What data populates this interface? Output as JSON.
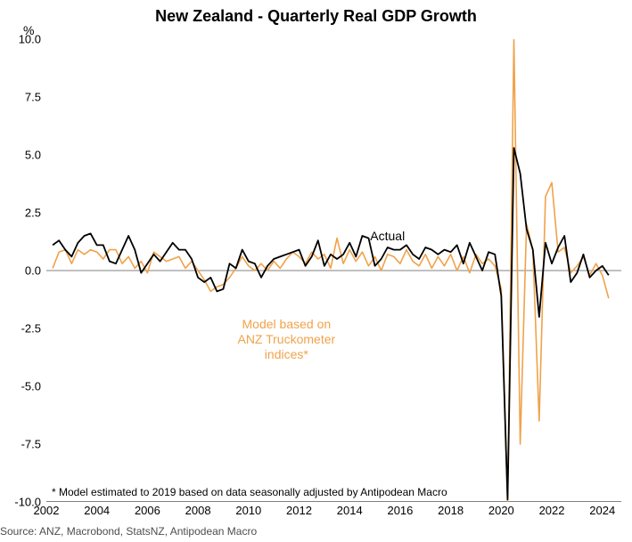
{
  "chart": {
    "type": "line",
    "title": "New Zealand - Quarterly Real GDP Growth",
    "y_unit_label": "%",
    "footnote": "* Model estimated to 2019 based on data seasonally adjusted by Antipodean Macro",
    "source": "Source: ANZ, Macrobond, StatsNZ, Antipodean Macro",
    "background_color": "#ffffff",
    "axis_color": "#000000",
    "zero_line_color": "#808080",
    "title_fontsize": 18,
    "label_fontsize": 13,
    "annotation_fontsize": 14,
    "x": {
      "min": 2002,
      "max": 2024.75,
      "ticks": [
        2002,
        2004,
        2006,
        2008,
        2010,
        2012,
        2014,
        2016,
        2018,
        2020,
        2022,
        2024
      ]
    },
    "y": {
      "min": -10.0,
      "max": 10.0,
      "ticks": [
        -10.0,
        -7.5,
        -5.0,
        -2.5,
        0.0,
        2.5,
        5.0,
        7.5,
        10.0
      ]
    },
    "series": [
      {
        "name": "Model based on ANZ Truckometer indices*",
        "color": "#f0a24a",
        "line_width": 1.6,
        "label_lines": [
          "Model based on",
          "ANZ Truckometer",
          "indices*"
        ],
        "label_pos": {
          "x": 2011.5,
          "y": -2.0
        },
        "data": [
          [
            2002.25,
            0.1
          ],
          [
            2002.5,
            0.8
          ],
          [
            2002.75,
            0.9
          ],
          [
            2003,
            0.3
          ],
          [
            2003.25,
            0.9
          ],
          [
            2003.5,
            0.7
          ],
          [
            2003.75,
            0.9
          ],
          [
            2004,
            0.8
          ],
          [
            2004.25,
            0.5
          ],
          [
            2004.5,
            0.9
          ],
          [
            2004.75,
            0.9
          ],
          [
            2005,
            0.3
          ],
          [
            2005.25,
            0.6
          ],
          [
            2005.5,
            0.1
          ],
          [
            2005.75,
            0.4
          ],
          [
            2006,
            -0.1
          ],
          [
            2006.25,
            0.8
          ],
          [
            2006.5,
            0.6
          ],
          [
            2006.75,
            0.4
          ],
          [
            2007,
            0.5
          ],
          [
            2007.25,
            0.6
          ],
          [
            2007.5,
            0.1
          ],
          [
            2007.75,
            0.4
          ],
          [
            2008,
            0.0
          ],
          [
            2008.25,
            -0.4
          ],
          [
            2008.5,
            -0.9
          ],
          [
            2008.75,
            -0.7
          ],
          [
            2009,
            -0.6
          ],
          [
            2009.25,
            -0.3
          ],
          [
            2009.5,
            0.1
          ],
          [
            2009.75,
            0.6
          ],
          [
            2010,
            0.2
          ],
          [
            2010.25,
            0.0
          ],
          [
            2010.5,
            0.3
          ],
          [
            2010.75,
            0.0
          ],
          [
            2011,
            0.4
          ],
          [
            2011.25,
            0.1
          ],
          [
            2011.5,
            0.5
          ],
          [
            2011.75,
            0.8
          ],
          [
            2012,
            0.6
          ],
          [
            2012.25,
            0.3
          ],
          [
            2012.5,
            0.8
          ],
          [
            2012.75,
            0.5
          ],
          [
            2013,
            0.7
          ],
          [
            2013.25,
            0.1
          ],
          [
            2013.5,
            1.4
          ],
          [
            2013.75,
            0.3
          ],
          [
            2014,
            0.9
          ],
          [
            2014.25,
            0.4
          ],
          [
            2014.5,
            0.8
          ],
          [
            2014.75,
            0.2
          ],
          [
            2015,
            0.6
          ],
          [
            2015.25,
            0.0
          ],
          [
            2015.5,
            0.7
          ],
          [
            2015.75,
            0.6
          ],
          [
            2016,
            0.3
          ],
          [
            2016.25,
            0.9
          ],
          [
            2016.5,
            0.4
          ],
          [
            2016.75,
            0.2
          ],
          [
            2017,
            0.7
          ],
          [
            2017.25,
            0.1
          ],
          [
            2017.5,
            0.6
          ],
          [
            2017.75,
            0.2
          ],
          [
            2018,
            0.7
          ],
          [
            2018.25,
            0.0
          ],
          [
            2018.5,
            0.6
          ],
          [
            2018.75,
            -0.1
          ],
          [
            2019,
            0.7
          ],
          [
            2019.25,
            0.3
          ],
          [
            2019.5,
            0.5
          ],
          [
            2019.75,
            0.2
          ],
          [
            2020,
            -0.8
          ],
          [
            2020.25,
            -10.5
          ],
          [
            2020.5,
            11.0
          ],
          [
            2020.75,
            -7.5
          ],
          [
            2021,
            2.0
          ],
          [
            2021.25,
            0.9
          ],
          [
            2021.5,
            -6.5
          ],
          [
            2021.75,
            3.2
          ],
          [
            2022,
            3.8
          ],
          [
            2022.25,
            0.8
          ],
          [
            2022.5,
            1.0
          ],
          [
            2022.75,
            -0.1
          ],
          [
            2023,
            0.2
          ],
          [
            2023.25,
            0.6
          ],
          [
            2023.5,
            -0.2
          ],
          [
            2023.75,
            0.3
          ],
          [
            2024,
            -0.2
          ],
          [
            2024.25,
            -1.2
          ]
        ]
      },
      {
        "name": "Actual",
        "color": "#000000",
        "line_width": 1.8,
        "label_lines": [
          "Actual"
        ],
        "label_pos": {
          "x": 2015.5,
          "y": 1.8
        },
        "data": [
          [
            2002.25,
            1.1
          ],
          [
            2002.5,
            1.3
          ],
          [
            2002.75,
            0.9
          ],
          [
            2003,
            0.6
          ],
          [
            2003.25,
            1.2
          ],
          [
            2003.5,
            1.5
          ],
          [
            2003.75,
            1.6
          ],
          [
            2004,
            1.1
          ],
          [
            2004.25,
            1.1
          ],
          [
            2004.5,
            0.4
          ],
          [
            2004.75,
            0.3
          ],
          [
            2005,
            0.9
          ],
          [
            2005.25,
            1.5
          ],
          [
            2005.5,
            0.9
          ],
          [
            2005.75,
            -0.1
          ],
          [
            2006,
            0.3
          ],
          [
            2006.25,
            0.7
          ],
          [
            2006.5,
            0.4
          ],
          [
            2006.75,
            0.8
          ],
          [
            2007,
            1.2
          ],
          [
            2007.25,
            0.9
          ],
          [
            2007.5,
            0.9
          ],
          [
            2007.75,
            0.5
          ],
          [
            2008,
            -0.3
          ],
          [
            2008.25,
            -0.5
          ],
          [
            2008.5,
            -0.3
          ],
          [
            2008.75,
            -0.9
          ],
          [
            2009,
            -0.8
          ],
          [
            2009.25,
            0.3
          ],
          [
            2009.5,
            0.1
          ],
          [
            2009.75,
            0.9
          ],
          [
            2010,
            0.4
          ],
          [
            2010.25,
            0.3
          ],
          [
            2010.5,
            -0.3
          ],
          [
            2010.75,
            0.2
          ],
          [
            2011,
            0.5
          ],
          [
            2011.25,
            0.6
          ],
          [
            2011.5,
            0.7
          ],
          [
            2011.75,
            0.8
          ],
          [
            2012,
            0.9
          ],
          [
            2012.25,
            0.2
          ],
          [
            2012.5,
            0.6
          ],
          [
            2012.75,
            1.3
          ],
          [
            2013,
            0.2
          ],
          [
            2013.25,
            0.7
          ],
          [
            2013.5,
            0.5
          ],
          [
            2013.75,
            0.7
          ],
          [
            2014,
            1.2
          ],
          [
            2014.25,
            0.6
          ],
          [
            2014.5,
            1.5
          ],
          [
            2014.75,
            1.4
          ],
          [
            2015,
            0.2
          ],
          [
            2015.25,
            0.5
          ],
          [
            2015.5,
            1.0
          ],
          [
            2015.75,
            0.9
          ],
          [
            2016,
            0.9
          ],
          [
            2016.25,
            1.1
          ],
          [
            2016.5,
            0.7
          ],
          [
            2016.75,
            0.5
          ],
          [
            2017,
            1.0
          ],
          [
            2017.25,
            0.9
          ],
          [
            2017.5,
            0.7
          ],
          [
            2017.75,
            0.9
          ],
          [
            2018,
            0.8
          ],
          [
            2018.25,
            1.1
          ],
          [
            2018.5,
            0.3
          ],
          [
            2018.75,
            1.2
          ],
          [
            2019,
            0.6
          ],
          [
            2019.25,
            0.0
          ],
          [
            2019.5,
            0.8
          ],
          [
            2019.75,
            0.7
          ],
          [
            2020,
            -1.1
          ],
          [
            2020.25,
            -9.9
          ],
          [
            2020.5,
            5.3
          ],
          [
            2020.75,
            4.2
          ],
          [
            2021,
            1.8
          ],
          [
            2021.25,
            0.9
          ],
          [
            2021.5,
            -2.0
          ],
          [
            2021.75,
            1.2
          ],
          [
            2022,
            0.3
          ],
          [
            2022.25,
            1.0
          ],
          [
            2022.5,
            1.5
          ],
          [
            2022.75,
            -0.5
          ],
          [
            2023,
            -0.1
          ],
          [
            2023.25,
            0.7
          ],
          [
            2023.5,
            -0.3
          ],
          [
            2023.75,
            0.0
          ],
          [
            2024,
            0.2
          ],
          [
            2024.25,
            -0.2
          ]
        ]
      }
    ]
  }
}
